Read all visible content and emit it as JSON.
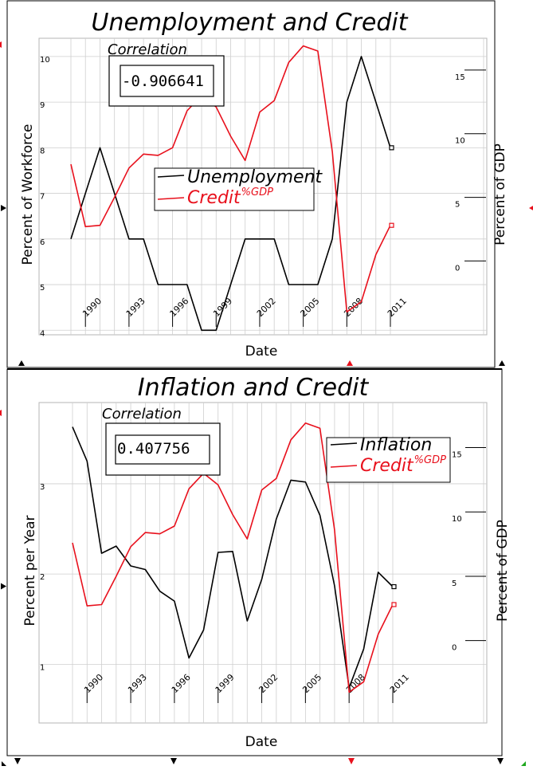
{
  "chart_data": [
    {
      "type": "line",
      "title": "Unemployment and Credit",
      "xlabel": "Date",
      "ylabel": "Percent of Workforce",
      "y2label": "Percent of GDP",
      "x": [
        1989,
        1990,
        1991,
        1992,
        1993,
        1994,
        1995,
        1996,
        1997,
        1998,
        1999,
        2000,
        2001,
        2002,
        2003,
        2004,
        2005,
        2006,
        2007,
        2008,
        2009,
        2010,
        2011
      ],
      "xticks": [
        "1990",
        "1993",
        "1996",
        "1999",
        "2002",
        "2005",
        "2008",
        "2011"
      ],
      "yticks": [
        "4",
        "5",
        "6",
        "7",
        "8",
        "9",
        "10"
      ],
      "y2ticks": [
        "0",
        "5",
        "10",
        "15"
      ],
      "ylim": [
        3.9,
        10.4
      ],
      "y2lim": [
        -5.8,
        17.5
      ],
      "grid": true,
      "correlation_label": "Correlation",
      "correlation_value": "-0.906641",
      "series": [
        {
          "name": "Unemployment",
          "axis": "left",
          "color": "#000000",
          "values": [
            6,
            7,
            8,
            7,
            6,
            6,
            5,
            5,
            5,
            4,
            4,
            5,
            6,
            6,
            6,
            5,
            5,
            5,
            6,
            9,
            10,
            9,
            8
          ]
        },
        {
          "name": "Credit",
          "name_sup": "%GDP",
          "axis": "right",
          "color": "#e8101c",
          "values": [
            7.6,
            2.7,
            2.8,
            5.0,
            7.3,
            8.4,
            8.3,
            8.9,
            11.8,
            13.0,
            12.1,
            9.8,
            7.9,
            11.7,
            12.6,
            15.6,
            16.9,
            16.5,
            8.6,
            -4.0,
            -3.2,
            0.5,
            2.8
          ]
        }
      ]
    },
    {
      "type": "line",
      "title": "Inflation and Credit",
      "xlabel": "Date",
      "ylabel": "Percent per Year",
      "y2label": "Percent of GDP",
      "x": [
        1989,
        1990,
        1991,
        1992,
        1993,
        1994,
        1995,
        1996,
        1997,
        1998,
        1999,
        2000,
        2001,
        2002,
        2003,
        2004,
        2005,
        2006,
        2007,
        2008,
        2009,
        2010,
        2011
      ],
      "xticks": [
        "1990",
        "1993",
        "1996",
        "1999",
        "2002",
        "2005",
        "2008",
        "2011"
      ],
      "yticks": [
        "1",
        "2",
        "3"
      ],
      "y2ticks": [
        "0",
        "5",
        "10",
        "15"
      ],
      "ylim": [
        0.35,
        3.9
      ],
      "y2lim": [
        -6.4,
        18.5
      ],
      "grid": true,
      "correlation_label": "Correlation",
      "correlation_value": "0.407756",
      "series": [
        {
          "name": "Inflation",
          "axis": "left",
          "color": "#000000",
          "values": [
            3.63,
            3.25,
            2.23,
            2.31,
            2.09,
            2.05,
            1.81,
            1.7,
            1.07,
            1.38,
            2.24,
            2.25,
            1.48,
            1.94,
            2.61,
            3.04,
            3.02,
            2.65,
            1.87,
            0.74,
            1.17,
            2.02,
            1.86
          ]
        },
        {
          "name": "Credit",
          "name_sup": "%GDP",
          "axis": "right",
          "color": "#e8101c",
          "values": [
            7.6,
            2.7,
            2.8,
            5.0,
            7.3,
            8.4,
            8.3,
            8.9,
            11.8,
            13.0,
            12.1,
            9.8,
            7.9,
            11.7,
            12.6,
            15.6,
            16.9,
            16.5,
            8.6,
            -4.0,
            -3.2,
            0.5,
            2.8
          ]
        }
      ]
    }
  ]
}
